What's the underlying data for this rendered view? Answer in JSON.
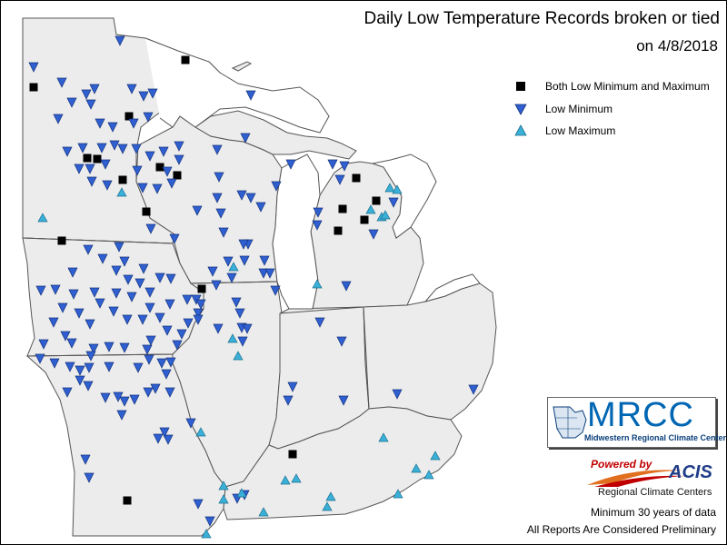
{
  "title": "Daily Low Temperature Records broken or tied",
  "subtitle": "on 4/8/2018",
  "legend": {
    "both_label": "Both Low Minimum and Maximum",
    "min_label": "Low Minimum",
    "max_label": "Low Maximum"
  },
  "logo": {
    "mrcc": "MRCC",
    "mrcc_full": "Midwestern Regional Climate Center",
    "powered_by": "Powered by",
    "acis": "ACIS",
    "rcc": "Regional Climate Centers"
  },
  "footer": {
    "line1": "Minimum 30 years of data",
    "line2": "All Reports Are Considered Preliminary"
  },
  "colors": {
    "land": "#ececec",
    "boundary": "#555555",
    "low_minimum": "#2f5fd0",
    "low_maximum": "#3ab0d8",
    "both": "#000000"
  },
  "records": {
    "both": [
      [
        204,
        66
      ],
      [
        37,
        96
      ],
      [
        142,
        128
      ],
      [
        96,
        174
      ],
      [
        107,
        175
      ],
      [
        176,
        184
      ],
      [
        195,
        193
      ],
      [
        135,
        198
      ],
      [
        161,
        233
      ],
      [
        68,
        265
      ],
      [
        222,
        318
      ],
      [
        392,
        196
      ],
      [
        414,
        221
      ],
      [
        377,
        230
      ],
      [
        401,
        242
      ],
      [
        372,
        254
      ],
      [
        322,
        500
      ],
      [
        140,
        551
      ]
    ],
    "low_minimum": [
      [
        37,
        74
      ],
      [
        132,
        45
      ],
      [
        68,
        91
      ],
      [
        104,
        98
      ],
      [
        95,
        104
      ],
      [
        145,
        98
      ],
      [
        158,
        106
      ],
      [
        64,
        131
      ],
      [
        79,
        113
      ],
      [
        100,
        115
      ],
      [
        168,
        103
      ],
      [
        110,
        136
      ],
      [
        124,
        140
      ],
      [
        147,
        136
      ],
      [
        163,
        129
      ],
      [
        74,
        167
      ],
      [
        91,
        163
      ],
      [
        112,
        163
      ],
      [
        126,
        160
      ],
      [
        135,
        164
      ],
      [
        87,
        186
      ],
      [
        99,
        186
      ],
      [
        116,
        181
      ],
      [
        101,
        200
      ],
      [
        118,
        204
      ],
      [
        150,
        164
      ],
      [
        165,
        172
      ],
      [
        180,
        167
      ],
      [
        197,
        161
      ],
      [
        151,
        188
      ],
      [
        157,
        207
      ],
      [
        173,
        208
      ],
      [
        189,
        202
      ],
      [
        184,
        189
      ],
      [
        239,
        165
      ],
      [
        270,
        152
      ],
      [
        276,
        105
      ],
      [
        197,
        176
      ],
      [
        241,
        195
      ],
      [
        239,
        218
      ],
      [
        217,
        232
      ],
      [
        243,
        235
      ],
      [
        266,
        215
      ],
      [
        276,
        218
      ],
      [
        287,
        228
      ],
      [
        304,
        205
      ],
      [
        320,
        181
      ],
      [
        246,
        256
      ],
      [
        273,
        269
      ],
      [
        268,
        269
      ],
      [
        269,
        287
      ],
      [
        291,
        287
      ],
      [
        290,
        301
      ],
      [
        297,
        301
      ],
      [
        303,
        320
      ],
      [
        251,
        288
      ],
      [
        255,
        306
      ],
      [
        260,
        333
      ],
      [
        264,
        345
      ],
      [
        234,
        299
      ],
      [
        238,
        314
      ],
      [
        216,
        330
      ],
      [
        218,
        345
      ],
      [
        192,
        263
      ],
      [
        166,
        252
      ],
      [
        131,
        272
      ],
      [
        137,
        288
      ],
      [
        97,
        275
      ],
      [
        113,
        285
      ],
      [
        128,
        298
      ],
      [
        141,
        308
      ],
      [
        158,
        296
      ],
      [
        154,
        312
      ],
      [
        176,
        306
      ],
      [
        188,
        307
      ],
      [
        165,
        322
      ],
      [
        145,
        327
      ],
      [
        165,
        339
      ],
      [
        187,
        335
      ],
      [
        206,
        330
      ],
      [
        221,
        335
      ],
      [
        218,
        352
      ],
      [
        207,
        356
      ],
      [
        200,
        368
      ],
      [
        195,
        380
      ],
      [
        184,
        364
      ],
      [
        176,
        350
      ],
      [
        157,
        352
      ],
      [
        140,
        352
      ],
      [
        125,
        343
      ],
      [
        110,
        334
      ],
      [
        104,
        322
      ],
      [
        128,
        323
      ],
      [
        81,
        324
      ],
      [
        80,
        300
      ],
      [
        45,
        320
      ],
      [
        61,
        319
      ],
      [
        69,
        339
      ],
      [
        87,
        345
      ],
      [
        99,
        357
      ],
      [
        72,
        370
      ],
      [
        59,
        355
      ],
      [
        48,
        379
      ],
      [
        44,
        395
      ],
      [
        60,
        400
      ],
      [
        79,
        378
      ],
      [
        103,
        384
      ],
      [
        120,
        382
      ],
      [
        137,
        383
      ],
      [
        162,
        385
      ],
      [
        166,
        375
      ],
      [
        164,
        396
      ],
      [
        152,
        405
      ],
      [
        178,
        400
      ],
      [
        188,
        399
      ],
      [
        183,
        412
      ],
      [
        171,
        428
      ],
      [
        187,
        432
      ],
      [
        163,
        432
      ],
      [
        148,
        440
      ],
      [
        137,
        442
      ],
      [
        130,
        437
      ],
      [
        116,
        438
      ],
      [
        97,
        425
      ],
      [
        88,
        419
      ],
      [
        98,
        405
      ],
      [
        88,
        408
      ],
      [
        77,
        404
      ],
      [
        74,
        432
      ],
      [
        120,
        404
      ],
      [
        100,
        392
      ],
      [
        134,
        457
      ],
      [
        174,
        483
      ],
      [
        185,
        484
      ],
      [
        181,
        476
      ],
      [
        210,
        466
      ],
      [
        94,
        506
      ],
      [
        98,
        526
      ],
      [
        218,
        555
      ],
      [
        231,
        574
      ],
      [
        261,
        549
      ],
      [
        269,
        545
      ],
      [
        240,
        362
      ],
      [
        267,
        376
      ],
      [
        266,
        361
      ],
      [
        272,
        362
      ],
      [
        322,
        426
      ],
      [
        317,
        441
      ],
      [
        378,
        441
      ],
      [
        437,
        434
      ],
      [
        521,
        429
      ],
      [
        352,
        355
      ],
      [
        376,
        376
      ],
      [
        381,
        315
      ],
      [
        350,
        234
      ],
      [
        349,
        248
      ],
      [
        411,
        258
      ],
      [
        433,
        223
      ],
      [
        374,
        198
      ],
      [
        379,
        183
      ],
      [
        366,
        181
      ]
    ],
    "low_maximum": [
      [
        47,
        240
      ],
      [
        134,
        212
      ],
      [
        429,
        207
      ],
      [
        437,
        209
      ],
      [
        420,
        239
      ],
      [
        424,
        237
      ],
      [
        408,
        231
      ],
      [
        257,
        294
      ],
      [
        349,
        313
      ],
      [
        256,
        373
      ],
      [
        262,
        392
      ],
      [
        221,
        476
      ],
      [
        422,
        482
      ],
      [
        479,
        502
      ],
      [
        458,
        516
      ],
      [
        246,
        535
      ],
      [
        246,
        550
      ],
      [
        266,
        543
      ],
      [
        326,
        527
      ],
      [
        314,
        529
      ],
      [
        364,
        547
      ],
      [
        360,
        558
      ],
      [
        438,
        544
      ],
      [
        472,
        523
      ],
      [
        290,
        564
      ],
      [
        227,
        588
      ]
    ]
  }
}
